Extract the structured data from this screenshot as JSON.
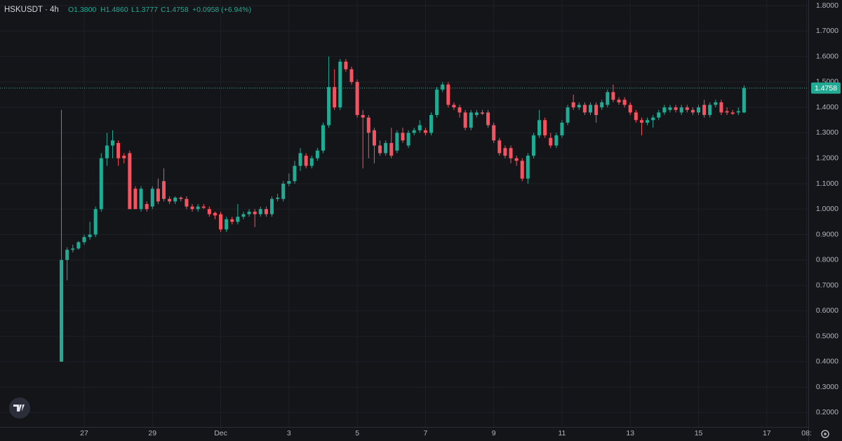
{
  "chart_data": {
    "type": "candlestick",
    "title": "HSKUSDT · 4h",
    "legend_open": "O1.3800",
    "legend_high": "H1.4860",
    "legend_low": "L1.3777",
    "legend_close": "C1.4758",
    "legend_change": "+0.0958 (+6.94%)",
    "last_price_label": "1.4758",
    "up_color": "#22ab94",
    "down_color": "#f7525f",
    "grid": true,
    "ylim": [
      0.1432,
      1.8223
    ],
    "yticks": [
      {
        "value": 0.2,
        "label": "0.2000"
      },
      {
        "value": 0.3,
        "label": "0.3000"
      },
      {
        "value": 0.4,
        "label": "0.4000"
      },
      {
        "value": 0.5,
        "label": "0.5000"
      },
      {
        "value": 0.6,
        "label": "0.6000"
      },
      {
        "value": 0.7,
        "label": "0.7000"
      },
      {
        "value": 0.8,
        "label": "0.8000"
      },
      {
        "value": 0.9,
        "label": "0.9000"
      },
      {
        "value": 1,
        "label": "1.0000"
      },
      {
        "value": 1.1,
        "label": "1.1000"
      },
      {
        "value": 1.2,
        "label": "1.2000"
      },
      {
        "value": 1.3,
        "label": "1.3000"
      },
      {
        "value": 1.4,
        "label": "1.4000"
      },
      {
        "value": 1.5,
        "label": "1.5000"
      },
      {
        "value": 1.6,
        "label": "1.6000"
      },
      {
        "value": 1.7,
        "label": "1.7000"
      },
      {
        "value": 1.8,
        "label": "1.8000"
      }
    ],
    "xlim": [
      -10.8,
      131.3
    ],
    "xticks": [
      {
        "value": 4,
        "label": "27"
      },
      {
        "value": 16,
        "label": "29"
      },
      {
        "value": 28,
        "label": "Dec"
      },
      {
        "value": 40,
        "label": "3"
      },
      {
        "value": 52,
        "label": "5"
      },
      {
        "value": 64,
        "label": "7"
      },
      {
        "value": 76,
        "label": "9"
      },
      {
        "value": 88,
        "label": "11"
      },
      {
        "value": 100,
        "label": "13"
      },
      {
        "value": 112,
        "label": "15"
      },
      {
        "value": 124,
        "label": "17"
      },
      {
        "value": 131,
        "label": "08:"
      }
    ],
    "ohlc": [
      [
        0.4,
        1.39,
        0.4,
        0.8
      ],
      [
        0.8,
        0.85,
        0.72,
        0.84
      ],
      [
        0.84,
        0.86,
        0.83,
        0.845
      ],
      [
        0.845,
        0.875,
        0.84,
        0.87
      ],
      [
        0.87,
        0.9,
        0.86,
        0.89
      ],
      [
        0.89,
        0.95,
        0.88,
        0.9
      ],
      [
        0.9,
        1.01,
        0.89,
        1.0
      ],
      [
        1.0,
        1.22,
        0.99,
        1.2
      ],
      [
        1.2,
        1.3,
        1.17,
        1.25
      ],
      [
        1.25,
        1.31,
        1.2,
        1.27
      ],
      [
        1.26,
        1.27,
        1.17,
        1.2
      ],
      [
        1.21,
        1.22,
        1.18,
        1.2
      ],
      [
        1.22,
        1.23,
        1.0,
        1.0
      ],
      [
        1.08,
        1.09,
        1.0,
        1.0
      ],
      [
        1.0,
        1.09,
        0.99,
        1.08
      ],
      [
        1.02,
        1.03,
        0.99,
        1.0
      ],
      [
        1.01,
        1.09,
        1.0,
        1.08
      ],
      [
        1.08,
        1.12,
        1.02,
        1.03
      ],
      [
        1.11,
        1.16,
        1.03,
        1.04
      ],
      [
        1.04,
        1.05,
        1.02,
        1.03
      ],
      [
        1.03,
        1.05,
        1.02,
        1.045
      ],
      [
        1.045,
        1.05,
        1.03,
        1.04
      ],
      [
        1.04,
        1.05,
        1.0,
        1.01
      ],
      [
        1.01,
        1.02,
        0.99,
        1.0
      ],
      [
        1.0,
        1.02,
        0.99,
        1.01
      ],
      [
        1.01,
        1.02,
        1.0,
        1.005
      ],
      [
        1.0,
        1.01,
        0.97,
        0.98
      ],
      [
        0.985,
        0.99,
        0.96,
        0.975
      ],
      [
        0.98,
        0.99,
        0.91,
        0.92
      ],
      [
        0.92,
        0.97,
        0.91,
        0.96
      ],
      [
        0.96,
        0.97,
        0.94,
        0.95
      ],
      [
        0.95,
        1.02,
        0.94,
        0.97
      ],
      [
        0.97,
        0.99,
        0.96,
        0.98
      ],
      [
        0.98,
        1.0,
        0.97,
        0.99
      ],
      [
        0.99,
        1.0,
        0.93,
        0.98
      ],
      [
        0.98,
        1.01,
        0.97,
        1.0
      ],
      [
        1.0,
        1.01,
        0.97,
        0.98
      ],
      [
        0.98,
        1.05,
        0.97,
        1.04
      ],
      [
        1.04,
        1.06,
        1.03,
        1.045
      ],
      [
        1.04,
        1.11,
        1.03,
        1.1
      ],
      [
        1.1,
        1.14,
        1.09,
        1.11
      ],
      [
        1.11,
        1.19,
        1.1,
        1.17
      ],
      [
        1.17,
        1.24,
        1.15,
        1.22
      ],
      [
        1.21,
        1.22,
        1.16,
        1.17
      ],
      [
        1.17,
        1.21,
        1.16,
        1.2
      ],
      [
        1.2,
        1.24,
        1.19,
        1.23
      ],
      [
        1.23,
        1.34,
        1.22,
        1.33
      ],
      [
        1.33,
        1.6,
        1.32,
        1.48
      ],
      [
        1.48,
        1.55,
        1.39,
        1.4
      ],
      [
        1.4,
        1.59,
        1.39,
        1.58
      ],
      [
        1.58,
        1.59,
        1.54,
        1.55
      ],
      [
        1.55,
        1.56,
        1.49,
        1.5
      ],
      [
        1.5,
        1.51,
        1.36,
        1.37
      ],
      [
        1.37,
        1.39,
        1.16,
        1.36
      ],
      [
        1.36,
        1.37,
        1.2,
        1.3
      ],
      [
        1.31,
        1.32,
        1.18,
        1.25
      ],
      [
        1.25,
        1.27,
        1.21,
        1.22
      ],
      [
        1.22,
        1.27,
        1.21,
        1.26
      ],
      [
        1.26,
        1.32,
        1.2,
        1.21
      ],
      [
        1.23,
        1.31,
        1.22,
        1.3
      ],
      [
        1.3,
        1.32,
        1.26,
        1.27
      ],
      [
        1.25,
        1.31,
        1.24,
        1.3
      ],
      [
        1.3,
        1.32,
        1.29,
        1.31
      ],
      [
        1.31,
        1.35,
        1.3,
        1.33
      ],
      [
        1.31,
        1.32,
        1.29,
        1.3
      ],
      [
        1.3,
        1.38,
        1.29,
        1.37
      ],
      [
        1.37,
        1.48,
        1.36,
        1.47
      ],
      [
        1.47,
        1.5,
        1.46,
        1.49
      ],
      [
        1.49,
        1.5,
        1.4,
        1.41
      ],
      [
        1.41,
        1.42,
        1.39,
        1.4
      ],
      [
        1.4,
        1.41,
        1.36,
        1.38
      ],
      [
        1.38,
        1.39,
        1.31,
        1.32
      ],
      [
        1.32,
        1.39,
        1.31,
        1.38
      ],
      [
        1.37,
        1.39,
        1.36,
        1.38
      ],
      [
        1.38,
        1.39,
        1.37,
        1.375
      ],
      [
        1.38,
        1.39,
        1.32,
        1.33
      ],
      [
        1.33,
        1.34,
        1.26,
        1.27
      ],
      [
        1.27,
        1.28,
        1.21,
        1.22
      ],
      [
        1.24,
        1.25,
        1.2,
        1.21
      ],
      [
        1.24,
        1.25,
        1.18,
        1.2
      ],
      [
        1.2,
        1.21,
        1.17,
        1.19
      ],
      [
        1.19,
        1.2,
        1.11,
        1.12
      ],
      [
        1.12,
        1.22,
        1.1,
        1.21
      ],
      [
        1.21,
        1.3,
        1.2,
        1.29
      ],
      [
        1.29,
        1.39,
        1.28,
        1.35
      ],
      [
        1.35,
        1.36,
        1.28,
        1.29
      ],
      [
        1.28,
        1.3,
        1.24,
        1.25
      ],
      [
        1.25,
        1.3,
        1.24,
        1.29
      ],
      [
        1.29,
        1.35,
        1.28,
        1.34
      ],
      [
        1.34,
        1.41,
        1.33,
        1.4
      ],
      [
        1.42,
        1.45,
        1.39,
        1.4
      ],
      [
        1.4,
        1.42,
        1.39,
        1.41
      ],
      [
        1.41,
        1.42,
        1.37,
        1.38
      ],
      [
        1.38,
        1.42,
        1.37,
        1.41
      ],
      [
        1.41,
        1.42,
        1.34,
        1.37
      ],
      [
        1.4,
        1.43,
        1.39,
        1.42
      ],
      [
        1.41,
        1.47,
        1.4,
        1.46
      ],
      [
        1.46,
        1.49,
        1.42,
        1.43
      ],
      [
        1.43,
        1.44,
        1.41,
        1.42
      ],
      [
        1.43,
        1.44,
        1.4,
        1.41
      ],
      [
        1.41,
        1.42,
        1.37,
        1.38
      ],
      [
        1.38,
        1.39,
        1.34,
        1.35
      ],
      [
        1.35,
        1.36,
        1.29,
        1.34
      ],
      [
        1.34,
        1.36,
        1.33,
        1.35
      ],
      [
        1.35,
        1.37,
        1.32,
        1.36
      ],
      [
        1.36,
        1.39,
        1.35,
        1.38
      ],
      [
        1.38,
        1.41,
        1.37,
        1.4
      ],
      [
        1.39,
        1.41,
        1.38,
        1.4
      ],
      [
        1.4,
        1.41,
        1.38,
        1.39
      ],
      [
        1.38,
        1.41,
        1.37,
        1.4
      ],
      [
        1.4,
        1.41,
        1.38,
        1.39
      ],
      [
        1.39,
        1.4,
        1.37,
        1.38
      ],
      [
        1.38,
        1.41,
        1.37,
        1.4
      ],
      [
        1.41,
        1.43,
        1.36,
        1.37
      ],
      [
        1.37,
        1.42,
        1.36,
        1.41
      ],
      [
        1.41,
        1.43,
        1.4,
        1.42
      ],
      [
        1.42,
        1.43,
        1.37,
        1.38
      ],
      [
        1.385,
        1.4,
        1.37,
        1.38
      ],
      [
        1.38,
        1.39,
        1.37,
        1.375
      ],
      [
        1.38,
        1.4,
        1.37,
        1.385
      ],
      [
        1.38,
        1.486,
        1.3777,
        1.4758
      ]
    ]
  }
}
